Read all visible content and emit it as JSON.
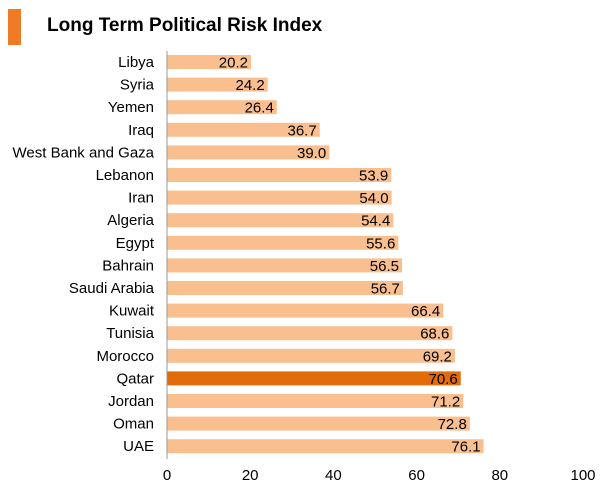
{
  "header": {
    "title": "Long Term Political Risk Index"
  },
  "colors": {
    "accent": "#f07b26",
    "bar": "#fabf8f",
    "highlight_bar": "#e36c0a",
    "axis": "#999999",
    "text": "#000000"
  },
  "chart_data": {
    "type": "bar",
    "orientation": "horizontal",
    "title": "Long Term Political Risk Index",
    "xlabel": "",
    "ylabel": "",
    "categories": [
      "Libya",
      "Syria",
      "Yemen",
      "Iraq",
      "West Bank and Gaza",
      "Lebanon",
      "Iran",
      "Algeria",
      "Egypt",
      "Bahrain",
      "Saudi Arabia",
      "Kuwait",
      "Tunisia",
      "Morocco",
      "Qatar",
      "Jordan",
      "Oman",
      "UAE"
    ],
    "values": [
      20.2,
      24.2,
      26.4,
      36.7,
      39.0,
      53.9,
      54.0,
      54.4,
      55.6,
      56.5,
      56.7,
      66.4,
      68.6,
      69.2,
      70.6,
      71.2,
      72.8,
      76.1
    ],
    "data_labels": [
      "20.2",
      "24.2",
      "26.4",
      "36.7",
      "39.0",
      "53.9",
      "54.0",
      "54.4",
      "55.6",
      "56.5",
      "56.7",
      "66.4",
      "68.6",
      "69.2",
      "70.6",
      "71.2",
      "72.8",
      "76.1"
    ],
    "highlight": "Qatar",
    "xlim": [
      0,
      100
    ],
    "xticks": [
      0,
      20,
      40,
      60,
      80,
      100
    ],
    "grid": false,
    "legend": "none"
  }
}
